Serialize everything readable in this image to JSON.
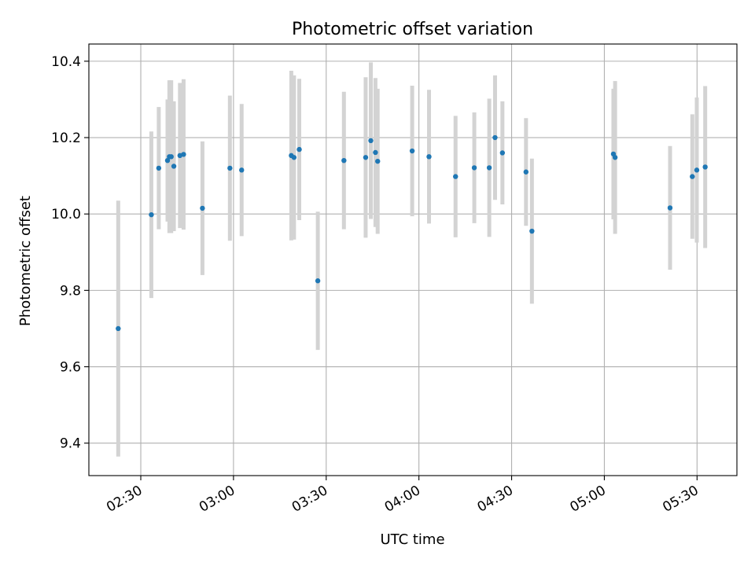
{
  "chart_data": {
    "type": "scatter",
    "title": "Photometric offset variation",
    "xlabel": "UTC time",
    "ylabel": "Photometric offset",
    "xlim": [
      "02:13:12",
      "05:42:54"
    ],
    "ylim": [
      9.315,
      10.445
    ],
    "x_ticks": [
      "02:30",
      "03:00",
      "03:30",
      "04:00",
      "04:30",
      "05:00",
      "05:30"
    ],
    "y_ticks": [
      9.4,
      9.6,
      9.8,
      10.0,
      10.2,
      10.4
    ],
    "grid": true,
    "colors": {
      "point": "#1f77b4",
      "errorbar": "#d3d3d3",
      "grid": "#b0b0b0"
    },
    "points": [
      {
        "x": "02:22:42",
        "y": 9.7,
        "err": 0.335
      },
      {
        "x": "02:33:25",
        "y": 9.998,
        "err": 0.218
      },
      {
        "x": "02:35:49",
        "y": 10.12,
        "err": 0.16
      },
      {
        "x": "02:38:39",
        "y": 10.14,
        "err": 0.16
      },
      {
        "x": "02:39:15",
        "y": 10.15,
        "err": 0.2
      },
      {
        "x": "02:39:51",
        "y": 10.15,
        "err": 0.2
      },
      {
        "x": "02:40:42",
        "y": 10.125,
        "err": 0.17
      },
      {
        "x": "02:42:40",
        "y": 10.153,
        "err": 0.19
      },
      {
        "x": "02:43:51",
        "y": 10.156,
        "err": 0.197
      },
      {
        "x": "02:49:57",
        "y": 10.015,
        "err": 0.175
      },
      {
        "x": "02:58:50",
        "y": 10.12,
        "err": 0.19
      },
      {
        "x": "03:02:38",
        "y": 10.115,
        "err": 0.173
      },
      {
        "x": "03:18:42",
        "y": 10.153,
        "err": 0.222
      },
      {
        "x": "03:19:35",
        "y": 10.148,
        "err": 0.215
      },
      {
        "x": "03:21:17",
        "y": 10.169,
        "err": 0.185
      },
      {
        "x": "03:27:17",
        "y": 9.825,
        "err": 0.181
      },
      {
        "x": "03:35:44",
        "y": 10.14,
        "err": 0.18
      },
      {
        "x": "03:42:46",
        "y": 10.148,
        "err": 0.21
      },
      {
        "x": "03:44:26",
        "y": 10.192,
        "err": 0.205
      },
      {
        "x": "03:45:56",
        "y": 10.161,
        "err": 0.195
      },
      {
        "x": "03:46:39",
        "y": 10.138,
        "err": 0.19
      },
      {
        "x": "03:57:49",
        "y": 10.165,
        "err": 0.171
      },
      {
        "x": "04:03:16",
        "y": 10.15,
        "err": 0.175
      },
      {
        "x": "04:11:51",
        "y": 10.098,
        "err": 0.159
      },
      {
        "x": "04:17:55",
        "y": 10.121,
        "err": 0.145
      },
      {
        "x": "04:22:46",
        "y": 10.121,
        "err": 0.181
      },
      {
        "x": "04:24:38",
        "y": 10.2,
        "err": 0.163
      },
      {
        "x": "04:27:01",
        "y": 10.16,
        "err": 0.135
      },
      {
        "x": "04:34:39",
        "y": 10.11,
        "err": 0.141
      },
      {
        "x": "04:36:34",
        "y": 9.955,
        "err": 0.19
      },
      {
        "x": "05:02:56",
        "y": 10.157,
        "err": 0.171
      },
      {
        "x": "05:03:29",
        "y": 10.148,
        "err": 0.2
      },
      {
        "x": "05:21:16",
        "y": 10.016,
        "err": 0.162
      },
      {
        "x": "05:28:28",
        "y": 10.098,
        "err": 0.163
      },
      {
        "x": "05:29:55",
        "y": 10.115,
        "err": 0.19
      },
      {
        "x": "05:32:38",
        "y": 10.123,
        "err": 0.212
      }
    ]
  }
}
